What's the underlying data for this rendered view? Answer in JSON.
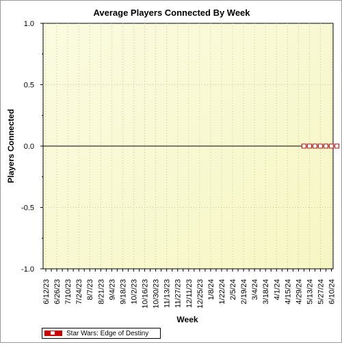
{
  "chart_data": {
    "type": "line",
    "title": "Average Players Connected By Week",
    "xlabel": "Week",
    "ylabel": "Players Connected",
    "ylim": [
      -1.0,
      1.0
    ],
    "yticks": [
      "1.0",
      "0.5",
      "0.0",
      "-0.5",
      "-1.0"
    ],
    "ytick_values": [
      1.0,
      0.5,
      0.0,
      -0.5,
      -1.0
    ],
    "categories": [
      "6/12/23",
      "6/26/23",
      "7/10/23",
      "7/24/23",
      "8/7/23",
      "8/21/23",
      "9/4/23",
      "9/18/23",
      "10/2/23",
      "10/16/23",
      "10/30/23",
      "11/13/23",
      "11/27/23",
      "12/11/23",
      "12/25/23",
      "1/8/24",
      "1/22/24",
      "2/5/24",
      "2/19/24",
      "3/4/24",
      "3/18/24",
      "4/1/24",
      "4/15/24",
      "4/29/24",
      "5/13/24",
      "5/27/24",
      "6/10/24"
    ],
    "x": [
      "6/12/23",
      "6/19/23",
      "6/26/23",
      "7/3/23",
      "7/10/23",
      "7/17/23",
      "7/24/23",
      "7/31/23",
      "8/7/23",
      "8/14/23",
      "8/21/23",
      "8/28/23",
      "9/4/23",
      "9/11/23",
      "9/18/23",
      "9/25/23",
      "10/2/23",
      "10/9/23",
      "10/16/23",
      "10/23/23",
      "10/30/23",
      "11/6/23",
      "11/13/23",
      "11/20/23",
      "11/27/23",
      "12/4/23",
      "12/11/23",
      "12/18/23",
      "12/25/23",
      "1/1/24",
      "1/8/24",
      "1/15/24",
      "1/22/24",
      "1/29/24",
      "2/5/24",
      "2/12/24",
      "2/19/24",
      "2/26/24",
      "3/4/24",
      "3/11/24",
      "3/18/24",
      "3/25/24",
      "4/1/24",
      "4/8/24",
      "4/15/24",
      "4/22/24",
      "4/29/24",
      "5/6/24",
      "5/13/24",
      "5/20/24",
      "5/27/24",
      "6/3/24",
      "6/10/24"
    ],
    "series": [
      {
        "name": "Star Wars: Edge of Destiny",
        "color": "#cc0000",
        "x": [
          "5/6/24",
          "5/13/24",
          "5/20/24",
          "5/27/24",
          "6/3/24",
          "6/10/24",
          "6/17/24"
        ],
        "values": [
          0,
          0,
          0,
          0,
          0,
          0,
          0
        ]
      }
    ],
    "grid": true,
    "legend": "bottom-left",
    "colors": {
      "plot_bg_top": "#fbfbe0",
      "plot_bg_bottom": "#f6f6c4",
      "zero_line": "#000000",
      "grid": "#c8c8a0"
    }
  }
}
